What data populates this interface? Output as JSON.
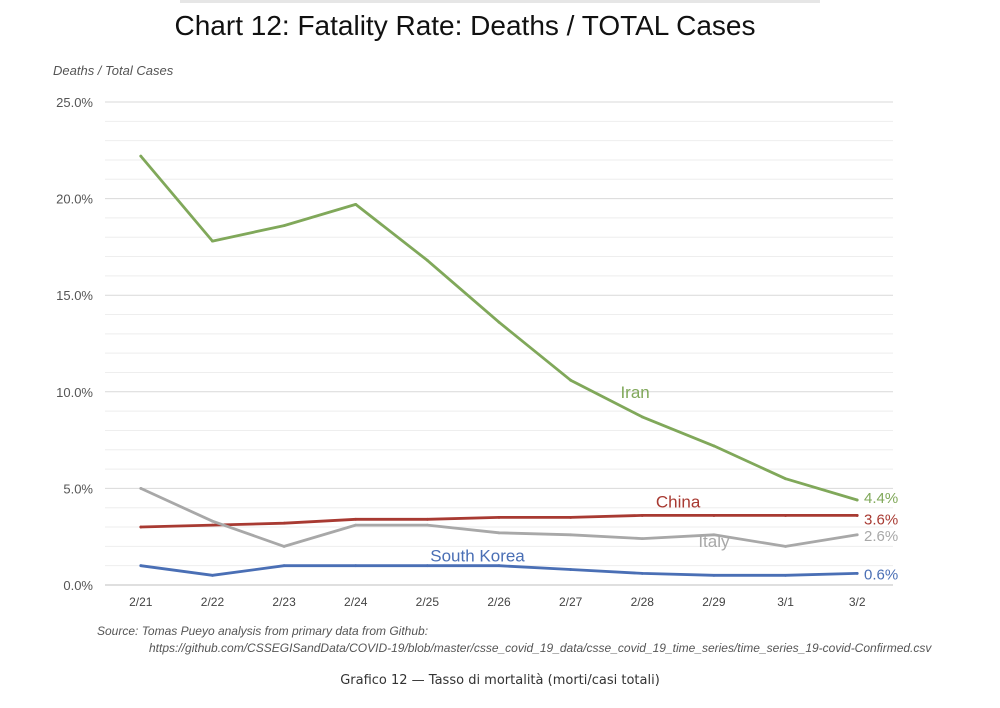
{
  "chart_data": {
    "type": "line",
    "title": "Chart 12: Fatality Rate: Deaths / TOTAL Cases",
    "ylabel": "Deaths / Total Cases",
    "xlabel": "",
    "categories": [
      "2/21",
      "2/22",
      "2/23",
      "2/24",
      "2/25",
      "2/26",
      "2/27",
      "2/28",
      "2/29",
      "3/1",
      "3/2"
    ],
    "ylim": [
      0,
      25
    ],
    "yticks": [
      "0.0%",
      "5.0%",
      "10.0%",
      "15.0%",
      "20.0%",
      "25.0%"
    ],
    "ytick_values": [
      0,
      5,
      10,
      15,
      20,
      25
    ],
    "grid": true,
    "series": [
      {
        "name": "Iran",
        "color": "#80a85a",
        "values": [
          22.2,
          17.8,
          18.6,
          19.7,
          16.8,
          13.6,
          10.6,
          8.7,
          7.2,
          5.5,
          4.4
        ],
        "end_label": "4.4%"
      },
      {
        "name": "China",
        "color": "#a83a32",
        "values": [
          3.0,
          3.1,
          3.2,
          3.4,
          3.4,
          3.5,
          3.5,
          3.6,
          3.6,
          3.6,
          3.6
        ],
        "end_label": "3.6%"
      },
      {
        "name": "Italy",
        "color": "#a8a8a8",
        "values": [
          5.0,
          3.3,
          2.0,
          3.1,
          3.1,
          2.7,
          2.6,
          2.4,
          2.6,
          2.0,
          2.6
        ],
        "end_label": "2.6%"
      },
      {
        "name": "South Korea",
        "color": "#4a6fb5",
        "values": [
          1.0,
          0.5,
          1.0,
          1.0,
          1.0,
          1.0,
          0.8,
          0.6,
          0.5,
          0.5,
          0.6
        ],
        "end_label": "0.6%"
      }
    ]
  },
  "source": {
    "line1": "Source: Tomas Pueyo analysis from primary data from Github:",
    "line2": "https://github.com/CSSEGISandData/COVID-19/blob/master/csse_covid_19_data/csse_covid_19_time_series/time_series_19-covid-Confirmed.csv"
  },
  "caption": "Grafico 12 — Tasso di mortalità (morti/casi totali)"
}
